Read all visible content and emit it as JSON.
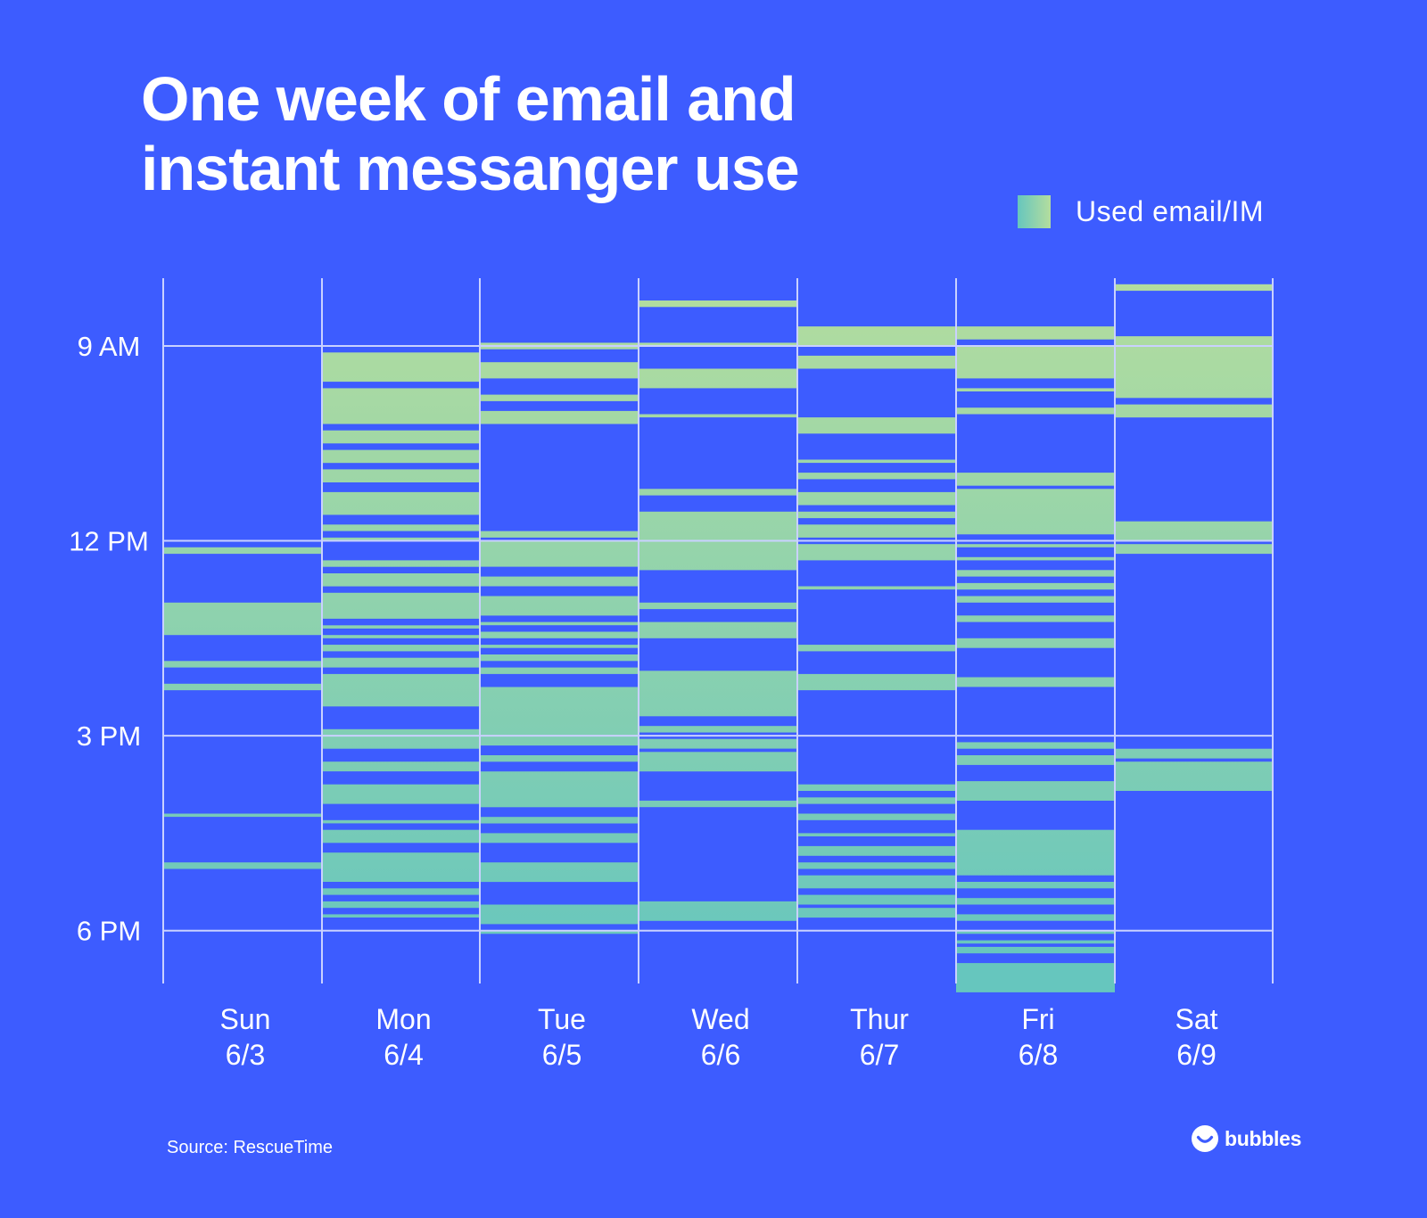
{
  "title_lines": [
    "One week of email and",
    "instant messanger use"
  ],
  "legend": {
    "label": "Used email/IM"
  },
  "source": "Source: RescueTime",
  "brand": {
    "name": "bubbles"
  },
  "colors": {
    "background": "#3D5CFF",
    "usage_top": "#B4DD9E",
    "usage_bottom": "#66C6BE",
    "gridline": "#C9D1FF",
    "text": "#FFFFFF"
  },
  "chart_data": {
    "type": "heatmap",
    "y_unit": "hour of day",
    "y_range": [
      7.3,
      19.8
    ],
    "y_ticks": [
      {
        "label": "9 AM",
        "hour": 9
      },
      {
        "label": "12 PM",
        "hour": 12
      },
      {
        "label": "3 PM",
        "hour": 15
      },
      {
        "label": "6 PM",
        "hour": 18
      }
    ],
    "days": [
      {
        "name": "Sun",
        "date": "6/3",
        "range": [
          12.1,
          17.9
        ],
        "segments": [
          [
            12.1,
            12.2
          ],
          [
            12.95,
            13.45
          ],
          [
            13.85,
            13.95
          ],
          [
            14.2,
            14.3
          ],
          [
            16.2,
            16.25
          ],
          [
            16.95,
            17.05
          ]
        ]
      },
      {
        "name": "Mon",
        "date": "6/4",
        "range": [
          9.0,
          18.0
        ],
        "segments": [
          [
            9.1,
            9.55
          ],
          [
            9.65,
            10.2
          ],
          [
            10.3,
            10.5
          ],
          [
            10.6,
            10.8
          ],
          [
            10.9,
            11.1
          ],
          [
            11.25,
            11.6
          ],
          [
            11.75,
            11.85
          ],
          [
            11.95,
            12.0
          ],
          [
            12.3,
            12.4
          ],
          [
            12.5,
            12.7
          ],
          [
            12.8,
            13.2
          ],
          [
            13.3,
            13.35
          ],
          [
            13.45,
            13.5
          ],
          [
            13.6,
            13.7
          ],
          [
            13.8,
            13.95
          ],
          [
            14.05,
            14.55
          ],
          [
            14.9,
            15.2
          ],
          [
            15.4,
            15.55
          ],
          [
            15.75,
            16.05
          ],
          [
            16.3,
            16.35
          ],
          [
            16.45,
            16.65
          ],
          [
            16.8,
            17.25
          ],
          [
            17.35,
            17.45
          ],
          [
            17.55,
            17.65
          ],
          [
            17.75,
            17.8
          ]
        ]
      },
      {
        "name": "Tue",
        "date": "6/5",
        "range": [
          8.95,
          18.05
        ],
        "segments": [
          [
            8.95,
            9.05
          ],
          [
            9.25,
            9.5
          ],
          [
            9.75,
            9.85
          ],
          [
            10.0,
            10.2
          ],
          [
            11.85,
            11.95
          ],
          [
            12.0,
            12.4
          ],
          [
            12.55,
            12.7
          ],
          [
            12.85,
            13.15
          ],
          [
            13.25,
            13.3
          ],
          [
            13.4,
            13.5
          ],
          [
            13.6,
            13.65
          ],
          [
            13.75,
            13.85
          ],
          [
            13.95,
            14.05
          ],
          [
            14.25,
            15.15
          ],
          [
            15.3,
            15.4
          ],
          [
            15.55,
            16.1
          ],
          [
            16.25,
            16.35
          ],
          [
            16.5,
            16.65
          ],
          [
            16.95,
            17.25
          ],
          [
            17.6,
            17.9
          ],
          [
            18.0,
            18.05
          ]
        ]
      },
      {
        "name": "Wed",
        "date": "6/6",
        "range": [
          8.3,
          18.0
        ],
        "segments": [
          [
            8.3,
            8.4
          ],
          [
            8.95,
            9.0
          ],
          [
            9.35,
            9.65
          ],
          [
            10.05,
            10.1
          ],
          [
            11.2,
            11.3
          ],
          [
            11.55,
            12.45
          ],
          [
            12.95,
            13.05
          ],
          [
            13.25,
            13.5
          ],
          [
            14.0,
            14.7
          ],
          [
            14.85,
            14.95
          ],
          [
            15.05,
            15.2
          ],
          [
            15.25,
            15.55
          ],
          [
            16.0,
            16.1
          ],
          [
            17.55,
            17.85
          ]
        ]
      },
      {
        "name": "Thur",
        "date": "6/7",
        "range": [
          8.7,
          18.0
        ],
        "segments": [
          [
            8.7,
            9.0
          ],
          [
            9.15,
            9.35
          ],
          [
            10.1,
            10.35
          ],
          [
            10.75,
            10.8
          ],
          [
            10.95,
            11.05
          ],
          [
            11.25,
            11.45
          ],
          [
            11.55,
            11.65
          ],
          [
            11.75,
            11.95
          ],
          [
            12.05,
            12.3
          ],
          [
            12.7,
            12.75
          ],
          [
            13.6,
            13.7
          ],
          [
            14.05,
            14.3
          ],
          [
            15.75,
            15.85
          ],
          [
            15.95,
            16.05
          ],
          [
            16.2,
            16.3
          ],
          [
            16.5,
            16.55
          ],
          [
            16.7,
            16.85
          ],
          [
            16.95,
            17.05
          ],
          [
            17.15,
            17.35
          ],
          [
            17.45,
            17.6
          ],
          [
            17.65,
            17.8
          ]
        ]
      },
      {
        "name": "Fri",
        "date": "6/8",
        "range": [
          8.7,
          19.0
        ],
        "segments": [
          [
            8.7,
            8.9
          ],
          [
            9.0,
            9.5
          ],
          [
            9.65,
            9.7
          ],
          [
            9.95,
            10.05
          ],
          [
            10.95,
            11.15
          ],
          [
            11.2,
            11.9
          ],
          [
            12.05,
            12.1
          ],
          [
            12.25,
            12.3
          ],
          [
            12.45,
            12.55
          ],
          [
            12.65,
            12.75
          ],
          [
            12.85,
            12.95
          ],
          [
            13.15,
            13.25
          ],
          [
            13.5,
            13.65
          ],
          [
            14.1,
            14.25
          ],
          [
            15.1,
            15.2
          ],
          [
            15.3,
            15.45
          ],
          [
            15.7,
            16.0
          ],
          [
            16.45,
            17.15
          ],
          [
            17.25,
            17.35
          ],
          [
            17.5,
            17.6
          ],
          [
            17.75,
            17.85
          ],
          [
            18.0,
            18.05
          ],
          [
            18.15,
            18.2
          ],
          [
            18.25,
            18.35
          ],
          [
            18.5,
            18.95
          ]
        ]
      },
      {
        "name": "Sat",
        "date": "6/9",
        "range": [
          8.0,
          18.0
        ],
        "segments": [
          [
            8.05,
            8.15
          ],
          [
            8.85,
            9.8
          ],
          [
            9.9,
            10.1
          ],
          [
            11.7,
            12.0
          ],
          [
            12.05,
            12.2
          ],
          [
            15.2,
            15.35
          ],
          [
            15.4,
            15.85
          ]
        ]
      }
    ]
  }
}
